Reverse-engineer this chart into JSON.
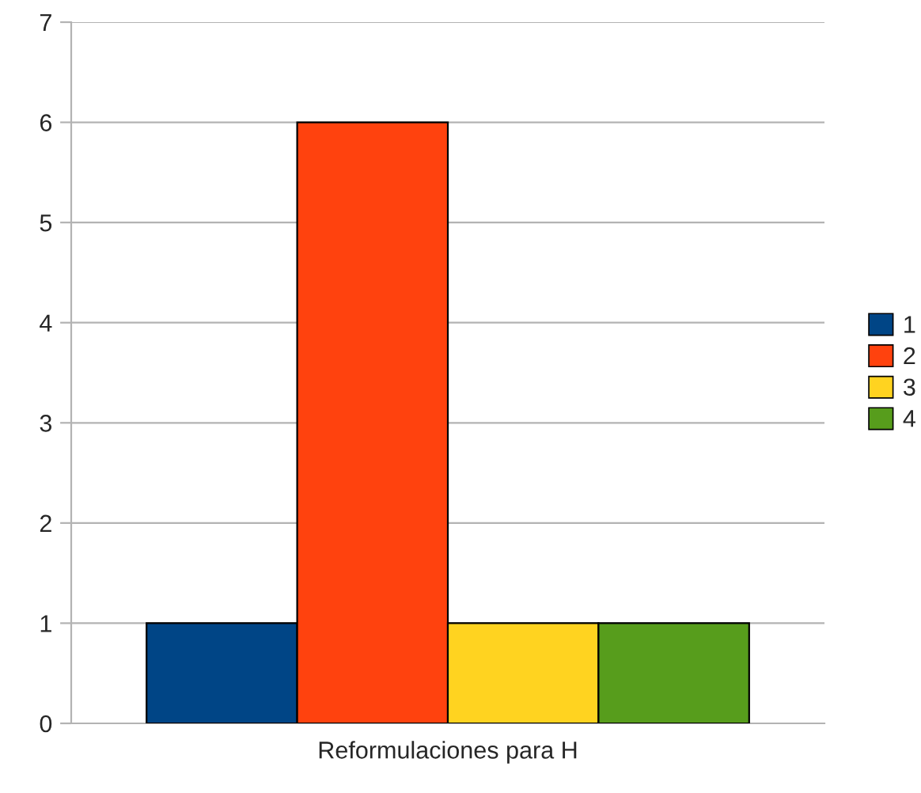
{
  "chart_data": {
    "type": "bar",
    "categories": [
      "Reformulaciones para H"
    ],
    "series": [
      {
        "name": "1",
        "color": "#004586",
        "values": [
          1
        ]
      },
      {
        "name": "2",
        "color": "#ff420e",
        "values": [
          6
        ]
      },
      {
        "name": "3",
        "color": "#ffd320",
        "values": [
          1
        ]
      },
      {
        "name": "4",
        "color": "#579d1c",
        "values": [
          1
        ]
      }
    ],
    "ylim": [
      0,
      7
    ],
    "yticks": [
      0,
      1,
      2,
      3,
      4,
      5,
      6,
      7
    ],
    "grid": "y",
    "legend": "right"
  }
}
